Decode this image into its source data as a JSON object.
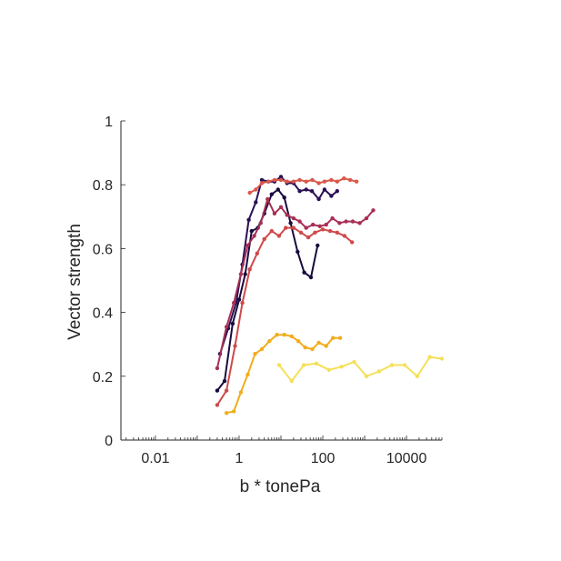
{
  "chart_data": {
    "type": "line",
    "xlabel": "b * tonePa",
    "ylabel": "Vector strength",
    "xscale": "log",
    "xlim": [
      0.0015,
      70000
    ],
    "ylim": [
      0,
      1
    ],
    "xticks": [
      {
        "value": 0.01,
        "label": "0.01"
      },
      {
        "value": 1,
        "label": "1"
      },
      {
        "value": 100,
        "label": "100"
      },
      {
        "value": 10000,
        "label": "10000"
      }
    ],
    "yticks": [
      {
        "value": 0,
        "label": "0"
      },
      {
        "value": 0.2,
        "label": "0.2"
      },
      {
        "value": 0.4,
        "label": "0.4"
      },
      {
        "value": 0.6,
        "label": "0.6"
      },
      {
        "value": 0.8,
        "label": "0.8"
      },
      {
        "value": 1,
        "label": "1"
      }
    ],
    "grid": false,
    "legend": "none",
    "series": [
      {
        "color": "#1a0a3e",
        "x": [
          0.3,
          0.45,
          0.7,
          1.0,
          1.4,
          2.0,
          2.8,
          4.0,
          6.0,
          8.5,
          12,
          17,
          25,
          36,
          52,
          75,
          110,
          150,
          220,
          320
        ],
        "y": [
          0.155,
          0.185,
          0.365,
          0.44,
          0.52,
          0.655,
          0.665,
          0.71,
          0.77,
          0.785,
          0.76,
          0.68,
          0.59,
          0.525,
          0.51,
          0.61,
          null,
          null,
          null,
          null
        ]
      },
      {
        "color": "#2a0f52",
        "x": [
          0.35,
          0.55,
          0.85,
          1.2,
          1.7,
          2.5,
          3.5,
          5.0,
          7.0,
          10,
          14,
          20,
          28,
          40,
          55,
          80,
          110,
          160,
          220,
          320
        ],
        "y": [
          0.27,
          0.35,
          0.43,
          0.55,
          0.69,
          0.745,
          0.815,
          0.81,
          0.81,
          0.825,
          0.805,
          0.805,
          0.78,
          0.785,
          0.78,
          0.755,
          0.785,
          0.765,
          0.78,
          null
        ]
      },
      {
        "color": "#a82f55",
        "x": [
          0.3,
          0.5,
          0.75,
          1.1,
          1.6,
          2.3,
          3.3,
          4.8,
          7.0,
          10,
          14,
          20,
          28,
          40,
          58,
          85,
          120,
          170,
          250,
          360,
          520,
          760,
          1100,
          1600,
          2300
        ],
        "y": [
          0.225,
          0.355,
          0.43,
          0.52,
          0.61,
          0.64,
          0.68,
          0.755,
          0.71,
          0.73,
          0.705,
          0.695,
          0.685,
          0.665,
          0.675,
          0.67,
          0.675,
          0.695,
          0.68,
          0.685,
          0.685,
          0.68,
          0.695,
          0.72,
          null
        ]
      },
      {
        "color": "#cf4a4a",
        "x": [
          0.3,
          0.5,
          0.8,
          1.2,
          1.8,
          2.7,
          4.0,
          6.0,
          9.0,
          13,
          20,
          30,
          45,
          65,
          100,
          150,
          220,
          330,
          500,
          750
        ],
        "y": [
          0.11,
          0.155,
          0.295,
          0.43,
          0.535,
          0.585,
          0.63,
          0.655,
          0.64,
          0.665,
          0.665,
          0.65,
          0.635,
          0.65,
          0.66,
          0.655,
          0.65,
          0.64,
          0.62,
          null
        ]
      },
      {
        "color": "#d9594a",
        "x": [
          1.8,
          2.5,
          3.5,
          5.0,
          7.0,
          10,
          14,
          20,
          28,
          40,
          56,
          80,
          110,
          160,
          220,
          320,
          450,
          640
        ],
        "y": [
          0.775,
          0.785,
          0.805,
          0.81,
          0.815,
          0.815,
          0.81,
          0.81,
          0.815,
          0.81,
          0.815,
          0.805,
          0.81,
          0.815,
          0.81,
          0.82,
          0.815,
          0.81
        ]
      },
      {
        "color": "#f1ad1d",
        "x": [
          0.5,
          0.75,
          1.1,
          1.6,
          2.4,
          3.5,
          5.3,
          8.0,
          12,
          18,
          26,
          38,
          56,
          80,
          120,
          175,
          260,
          380,
          560
        ],
        "y": [
          0.085,
          0.09,
          0.15,
          0.205,
          0.27,
          0.285,
          0.31,
          0.33,
          0.33,
          0.325,
          0.31,
          0.29,
          0.285,
          0.305,
          0.295,
          0.32,
          0.32,
          null,
          null
        ]
      },
      {
        "color": "#f4e05a",
        "x": [
          9,
          18,
          35,
          70,
          140,
          280,
          560,
          1100,
          2200,
          4500,
          9000,
          18000,
          36000,
          70000
        ],
        "y": [
          0.235,
          0.185,
          0.235,
          0.24,
          0.22,
          0.23,
          0.245,
          0.2,
          0.215,
          0.235,
          0.235,
          0.2,
          0.26,
          0.255
        ]
      }
    ]
  }
}
